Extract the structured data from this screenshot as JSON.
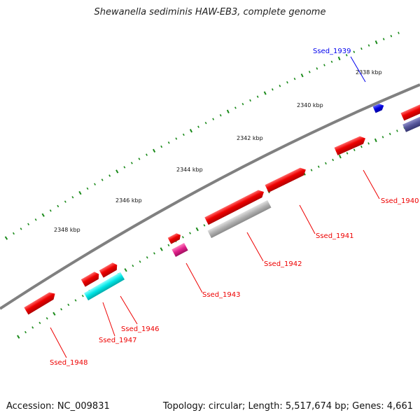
{
  "title": "Shewanella sediminis HAW-EB3, complete genome",
  "accession": "Accession: NC_009831",
  "topology": "Topology: circular; Length: 5,517,674 bp; Genes: 4,661",
  "kbp_labels": [
    "2338 kbp",
    "2340 kbp",
    "2342 kbp",
    "2344 kbp",
    "2346 kbp",
    "2348 kbp"
  ],
  "genes": [
    {
      "name": "Ssed_1939",
      "color": "#0000ee"
    },
    {
      "name": "Ssed_1940",
      "color": "#ee0000"
    },
    {
      "name": "Ssed_1941",
      "color": "#ee0000"
    },
    {
      "name": "Ssed_1942",
      "color": "#ee0000"
    },
    {
      "name": "Ssed_1943",
      "color": "#ee0000"
    },
    {
      "name": "Ssed_1946",
      "color": "#ee0000"
    },
    {
      "name": "Ssed_1947",
      "color": "#ee0000"
    },
    {
      "name": "Ssed_1948",
      "color": "#ee0000"
    }
  ],
  "colors": {
    "backbone": "#808080",
    "tick": "#1a8a1a",
    "forward_gene": "#ee0000",
    "blue_gene": "#0000dd",
    "cyan_gene": "#00e5e5",
    "gray_gene": "#b0b0b0",
    "magenta_gene": "#e0208a",
    "purple_gene": "#55559a"
  }
}
